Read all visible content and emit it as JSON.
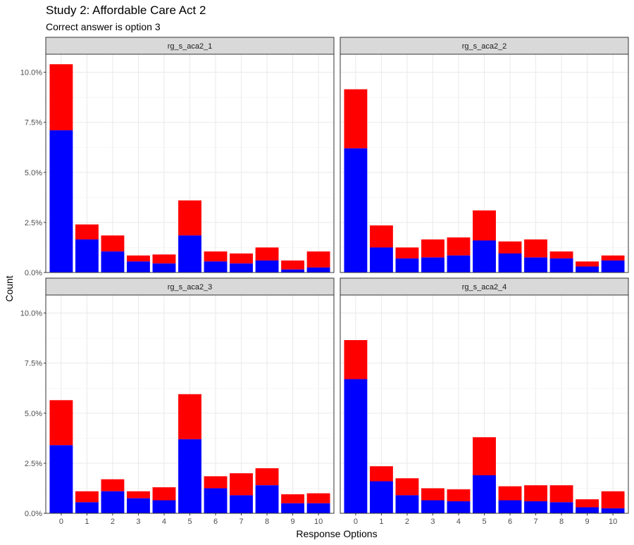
{
  "chart_data": {
    "type": "bar",
    "stacked": true,
    "title": "Study 2: Affordable Care Act 2",
    "subtitle": "Correct answer is option 3",
    "xlabel": "Response Options",
    "ylabel": "Count",
    "categories": [
      "0",
      "1",
      "2",
      "3",
      "4",
      "5",
      "6",
      "7",
      "8",
      "9",
      "10"
    ],
    "y_ticks": [
      "0.0%",
      "2.5%",
      "5.0%",
      "7.5%",
      "10.0%"
    ],
    "y_tick_values": [
      0,
      2.5,
      5.0,
      7.5,
      10.0
    ],
    "ylim": [
      0,
      10.9
    ],
    "grid": true,
    "legend": "none",
    "colors": {
      "lower": "#0000ff",
      "upper": "#ff0000"
    },
    "panels": [
      {
        "label": "rg_s_aca2_1",
        "lower": [
          7.1,
          1.65,
          1.05,
          0.55,
          0.45,
          1.85,
          0.55,
          0.45,
          0.6,
          0.15,
          0.25
        ],
        "total": [
          10.4,
          2.4,
          1.85,
          0.85,
          0.9,
          3.6,
          1.05,
          0.95,
          1.25,
          0.6,
          1.05
        ]
      },
      {
        "label": "rg_s_aca2_2",
        "lower": [
          6.2,
          1.25,
          0.7,
          0.75,
          0.85,
          1.6,
          0.95,
          0.75,
          0.7,
          0.3,
          0.6
        ],
        "total": [
          9.15,
          2.35,
          1.25,
          1.65,
          1.75,
          3.1,
          1.55,
          1.65,
          1.05,
          0.55,
          0.85
        ]
      },
      {
        "label": "rg_s_aca2_3",
        "lower": [
          3.4,
          0.55,
          1.1,
          0.75,
          0.65,
          3.7,
          1.25,
          0.9,
          1.4,
          0.5,
          0.5
        ],
        "total": [
          5.65,
          1.1,
          1.7,
          1.1,
          1.3,
          5.95,
          1.85,
          2.0,
          2.25,
          0.95,
          1.0
        ]
      },
      {
        "label": "rg_s_aca2_4",
        "lower": [
          6.7,
          1.6,
          0.9,
          0.65,
          0.6,
          1.9,
          0.65,
          0.6,
          0.55,
          0.3,
          0.25
        ],
        "total": [
          8.65,
          2.35,
          1.75,
          1.25,
          1.2,
          3.8,
          1.35,
          1.4,
          1.4,
          0.7,
          1.1
        ]
      }
    ]
  }
}
